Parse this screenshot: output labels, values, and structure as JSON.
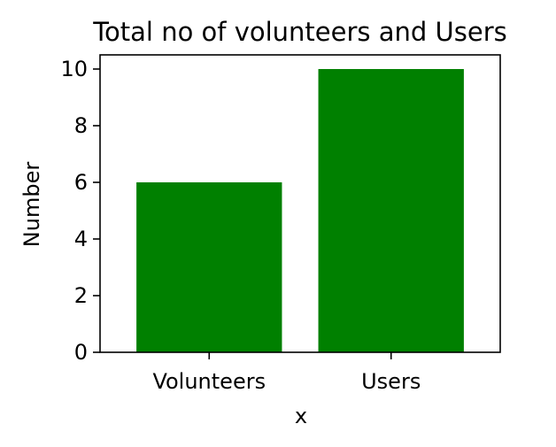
{
  "chart_data": {
    "type": "bar",
    "title": "Total no of volunteers and Users",
    "xlabel": "x",
    "ylabel": "Number",
    "categories": [
      "Volunteers",
      "Users"
    ],
    "values": [
      6,
      10
    ],
    "ylim": [
      0,
      10.5
    ],
    "yticks": [
      "0",
      "2",
      "4",
      "6",
      "8",
      "10"
    ],
    "bar_color": "#008000",
    "grid": false,
    "legend": "none"
  }
}
